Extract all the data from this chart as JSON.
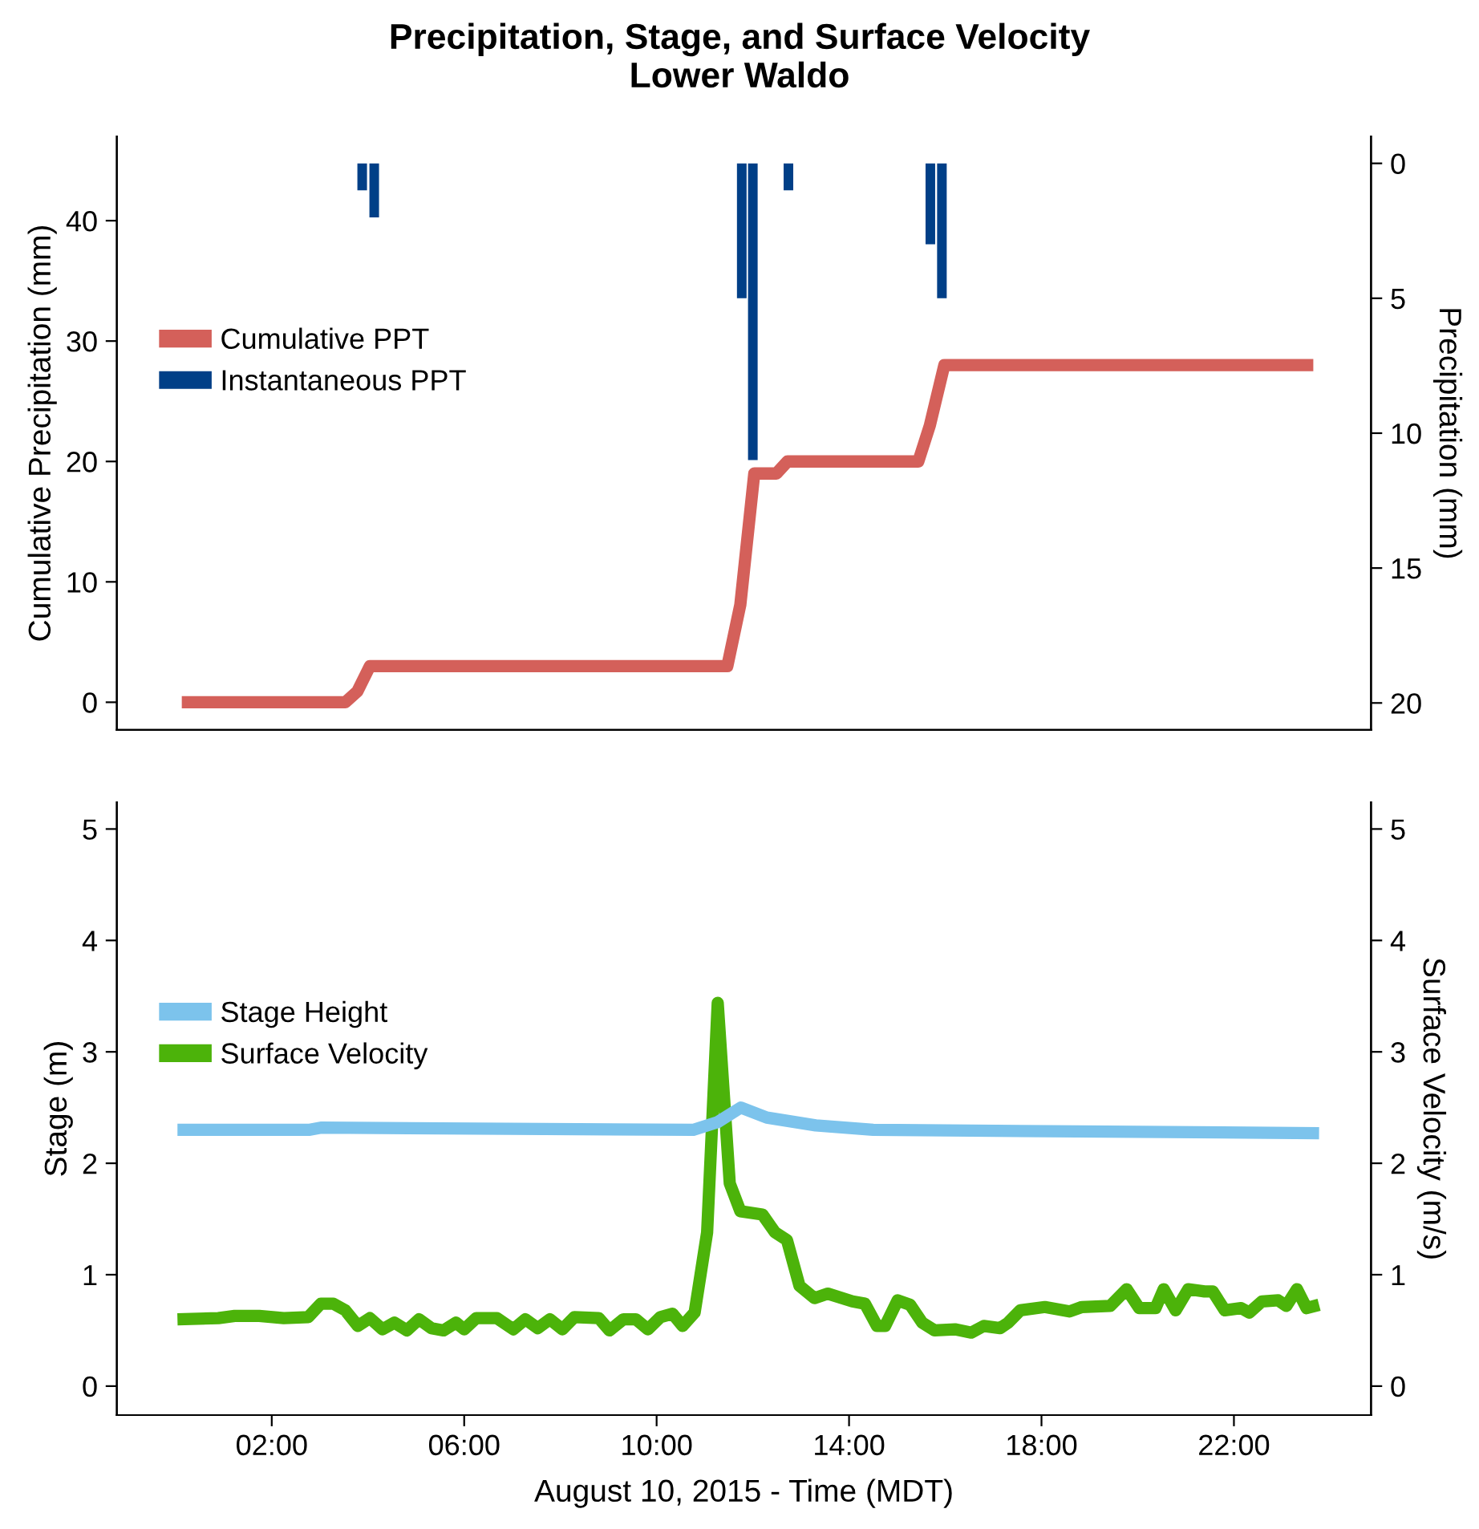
{
  "chart_data": [
    {
      "type": "line",
      "title": "Precipitation, Stage, and Surface Velocity",
      "subtitle": "Lower Waldo",
      "ylabel": "Cumulative Precipitation (mm)",
      "y2label": "Precipitation (mm)",
      "xlim": [
        -1.22,
        24.85
      ],
      "ylim": [
        -2.3,
        47
      ],
      "yticks": [
        0,
        10,
        20,
        30,
        40
      ],
      "y2lim": [
        21,
        -1
      ],
      "y2ticks": [
        0,
        5,
        10,
        15,
        20
      ],
      "tick_labels": "y",
      "legend": "left",
      "grid": false,
      "series": [
        {
          "name": "Cumulative PPT",
          "color": "#d4605a",
          "x": [
            0.13,
            3.53,
            3.78,
            4.04,
            11.47,
            11.74,
            12.03,
            12.49,
            12.72,
            15.44,
            15.68,
            15.98,
            23.65
          ],
          "values": [
            0,
            0,
            0.9,
            3,
            3,
            8.1,
            19,
            19,
            20,
            20,
            23,
            28,
            28
          ]
        },
        {
          "name": "Instantaneous PPT",
          "type": "bar",
          "axis": "y2",
          "color": "#003f87",
          "x": [
            3.88,
            4.13,
            11.77,
            12.0,
            12.74,
            15.69,
            15.93
          ],
          "values": [
            1,
            2,
            5,
            11,
            1,
            3,
            5
          ]
        }
      ]
    },
    {
      "type": "line",
      "xlabel": "August 10, 2015 - Time (MDT)",
      "ylabel": "Stage (m)",
      "y2label": "Surface Velocity (m/s)",
      "xlim": [
        -1.22,
        24.85
      ],
      "xticks": [
        {
          "value": 2,
          "label": "02:00"
        },
        {
          "value": 6,
          "label": "06:00"
        },
        {
          "value": 10,
          "label": "10:00"
        },
        {
          "value": 14,
          "label": "14:00"
        },
        {
          "value": 18,
          "label": "18:00"
        },
        {
          "value": 22,
          "label": "22:00"
        }
      ],
      "ylim": [
        -0.26,
        5.24
      ],
      "yticks": [
        0,
        1,
        2,
        3,
        4,
        5
      ],
      "y2lim": [
        -0.26,
        5.24
      ],
      "y2ticks": [
        0,
        1,
        2,
        3,
        4,
        5
      ],
      "legend": "left",
      "grid": false,
      "series": [
        {
          "name": "Stage Height",
          "color": "#7cc3ec",
          "x": [
            0.04,
            2.77,
            3.02,
            10.76,
            11.27,
            11.75,
            12.29,
            13.31,
            14.5,
            23.77
          ],
          "values": [
            2.3,
            2.3,
            2.32,
            2.3,
            2.37,
            2.5,
            2.41,
            2.34,
            2.3,
            2.27
          ]
        },
        {
          "name": "Surface Velocity",
          "axis": "y2",
          "color": "#4cb30a",
          "x": [
            0.04,
            0.89,
            1.23,
            1.74,
            2.25,
            2.76,
            3.02,
            3.28,
            3.53,
            3.79,
            4.04,
            4.3,
            4.55,
            4.81,
            5.06,
            5.32,
            5.57,
            5.83,
            6.0,
            6.25,
            6.68,
            7.02,
            7.27,
            7.53,
            7.78,
            8.04,
            8.29,
            8.8,
            9.02,
            9.31,
            9.57,
            9.82,
            10.08,
            10.33,
            10.54,
            10.79,
            11.05,
            11.27,
            11.52,
            11.74,
            12.2,
            12.46,
            12.71,
            12.97,
            13.28,
            13.56,
            14.07,
            14.33,
            14.58,
            14.75,
            15.01,
            15.27,
            15.52,
            15.78,
            16.2,
            16.54,
            16.8,
            17.14,
            17.31,
            17.56,
            18.07,
            18.58,
            18.84,
            19.43,
            19.77,
            20.03,
            20.37,
            20.54,
            20.79,
            21.05,
            21.39,
            21.56,
            21.81,
            22.15,
            22.32,
            22.58,
            22.92,
            23.09,
            23.31,
            23.51,
            23.77
          ],
          "values": [
            0.6,
            0.61,
            0.63,
            0.63,
            0.61,
            0.62,
            0.74,
            0.74,
            0.68,
            0.54,
            0.61,
            0.51,
            0.57,
            0.5,
            0.6,
            0.52,
            0.5,
            0.57,
            0.51,
            0.61,
            0.61,
            0.51,
            0.6,
            0.52,
            0.6,
            0.51,
            0.62,
            0.61,
            0.5,
            0.6,
            0.6,
            0.51,
            0.62,
            0.65,
            0.54,
            0.66,
            1.38,
            3.44,
            1.82,
            1.57,
            1.54,
            1.38,
            1.31,
            0.9,
            0.79,
            0.83,
            0.76,
            0.74,
            0.54,
            0.54,
            0.77,
            0.73,
            0.57,
            0.5,
            0.51,
            0.48,
            0.54,
            0.52,
            0.57,
            0.68,
            0.71,
            0.67,
            0.71,
            0.72,
            0.87,
            0.7,
            0.7,
            0.87,
            0.68,
            0.87,
            0.85,
            0.85,
            0.68,
            0.7,
            0.66,
            0.76,
            0.77,
            0.72,
            0.87,
            0.7,
            0.73
          ]
        }
      ]
    }
  ]
}
